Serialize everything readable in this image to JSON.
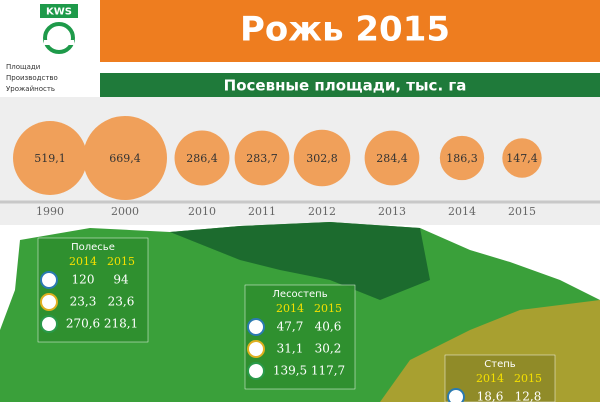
{
  "header": {
    "logo": "KWS",
    "title": "Рожь 2015",
    "menu": [
      "Площади",
      "Производство",
      "Урожайность"
    ]
  },
  "chart_data": {
    "type": "bubble",
    "title": "Посевные площади, тыс. га",
    "categories": [
      "1990",
      "2000",
      "2010",
      "2011",
      "2012",
      "2013",
      "2014",
      "2015"
    ],
    "values": [
      519.1,
      669.4,
      286.4,
      283.7,
      302.8,
      284.4,
      186.3,
      147.4
    ],
    "value_labels": [
      "519,1",
      "669,4",
      "286,4",
      "283,7",
      "302,8",
      "284,4",
      "186,3",
      "147,4"
    ],
    "color": "#f0a05a"
  },
  "regions": [
    {
      "name": "Полесье",
      "years": [
        "2014",
        "2015"
      ],
      "rows": [
        [
          "120",
          "94"
        ],
        [
          "23,3",
          "23,6"
        ],
        [
          "270,6",
          "218,1"
        ]
      ]
    },
    {
      "name": "Лесостепь",
      "years": [
        "2014",
        "2015"
      ],
      "rows": [
        [
          "47,7",
          "40,6"
        ],
        [
          "31,1",
          "30,2"
        ],
        [
          "139,5",
          "117,7"
        ]
      ]
    },
    {
      "name": "Степь",
      "years": [
        "2014",
        "2015"
      ],
      "rows": [
        [
          "18,6",
          "12,8"
        ]
      ]
    }
  ]
}
